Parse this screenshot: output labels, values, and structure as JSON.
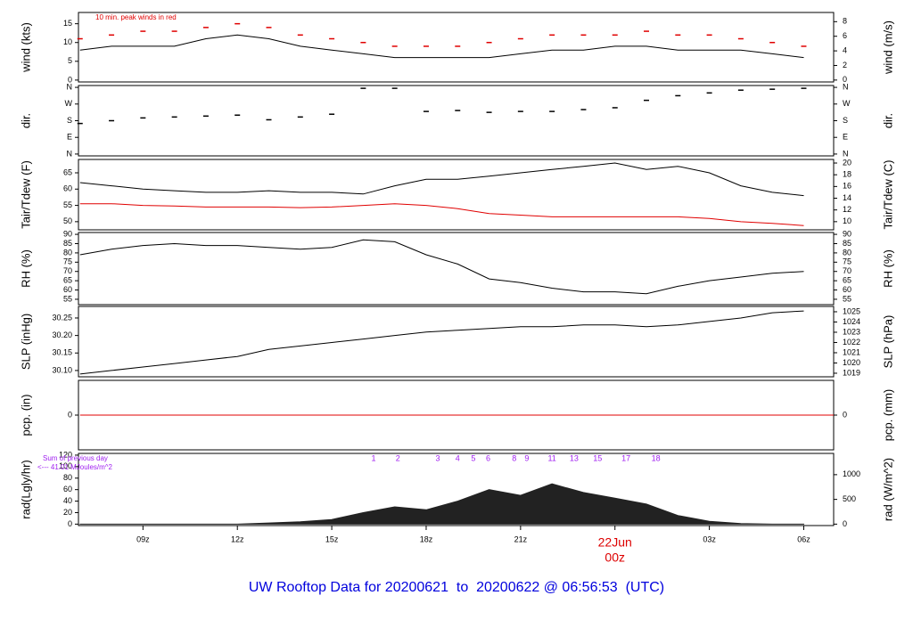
{
  "chart_data": [
    {
      "type": "line",
      "ylabel": "wind (kts)",
      "y2label": "wind (m/s)",
      "annotation": "10 min. peak winds in red",
      "annotation_color": "#e00000",
      "xlim": [
        6.95,
        30.95
      ],
      "ylim": [
        -0.5,
        18
      ],
      "yticks": [
        0,
        5,
        10,
        15
      ],
      "y2lim": [
        -0.26,
        9.26
      ],
      "y2ticks": [
        0,
        2,
        4,
        6,
        8
      ],
      "x": [
        7,
        8,
        9,
        10,
        11,
        12,
        13,
        14,
        15,
        16,
        17,
        18,
        19,
        20,
        21,
        22,
        23,
        24,
        25,
        26,
        27,
        28,
        29,
        30
      ],
      "series": [
        {
          "color": "#000000",
          "marker": "line",
          "values": [
            8,
            9,
            9,
            9,
            11,
            12,
            11,
            9,
            8,
            7,
            6,
            6,
            6,
            6,
            7,
            8,
            8,
            9,
            9,
            8,
            8,
            8,
            7,
            6
          ]
        },
        {
          "color": "#e00000",
          "marker": "dash",
          "values": [
            11,
            12,
            13,
            13,
            14,
            15,
            14,
            12,
            11,
            10,
            9,
            9,
            9,
            10,
            11,
            12,
            12,
            12,
            13,
            12,
            12,
            11,
            10,
            9
          ]
        }
      ]
    },
    {
      "type": "scatter",
      "ylabel": "dir.",
      "y2label": "dir.",
      "xlim": [
        6.95,
        30.95
      ],
      "ylim": [
        -10,
        370
      ],
      "yticks": [
        {
          "value": 0,
          "label": "N"
        },
        {
          "value": 90,
          "label": "E"
        },
        {
          "value": 180,
          "label": "S"
        },
        {
          "value": 270,
          "label": "W"
        },
        {
          "value": 360,
          "label": "N"
        }
      ],
      "x": [
        7,
        8,
        9,
        10,
        11,
        12,
        13,
        14,
        15,
        16,
        17,
        18,
        19,
        20,
        21,
        22,
        23,
        24,
        25,
        26,
        27,
        28,
        29,
        30
      ],
      "series": [
        {
          "color": "#000000",
          "marker": "dash",
          "values": [
            165,
            180,
            195,
            200,
            205,
            210,
            185,
            200,
            215,
            355,
            355,
            230,
            235,
            225,
            230,
            230,
            240,
            250,
            290,
            315,
            330,
            345,
            350,
            355
          ]
        }
      ]
    },
    {
      "type": "line",
      "ylabel": "Tair/Tdew (F)",
      "y2label": "Tair/Tdew (C)",
      "xlim": [
        6.95,
        30.95
      ],
      "ylim": [
        47.5,
        69.1
      ],
      "yticks": [
        50,
        55,
        60,
        65
      ],
      "y2lim": [
        8.61,
        20.61
      ],
      "y2ticks": [
        10,
        12,
        14,
        16,
        18,
        20
      ],
      "x": [
        7,
        8,
        9,
        10,
        11,
        12,
        13,
        14,
        15,
        16,
        17,
        18,
        19,
        20,
        21,
        22,
        23,
        24,
        25,
        26,
        27,
        28,
        29,
        30
      ],
      "series": [
        {
          "color": "#000000",
          "marker": "line",
          "values": [
            62,
            61,
            60,
            59.5,
            59,
            59,
            59.5,
            59,
            59,
            58.5,
            61,
            63,
            63,
            64,
            65,
            66,
            67,
            68,
            66,
            67,
            65,
            61,
            59,
            58
          ]
        },
        {
          "color": "#e00000",
          "marker": "line",
          "values": [
            55.5,
            55.5,
            55,
            54.8,
            54.5,
            54.5,
            54.5,
            54.3,
            54.5,
            55,
            55.5,
            55,
            54,
            52.5,
            52,
            51.5,
            51.5,
            51.5,
            51.5,
            51.5,
            51,
            50,
            49.5,
            48.8
          ]
        }
      ]
    },
    {
      "type": "line",
      "ylabel": "RH (%)",
      "y2label": "RH (%)",
      "xlim": [
        6.95,
        30.95
      ],
      "ylim": [
        52.1,
        91
      ],
      "yticks": [
        55,
        60,
        65,
        70,
        75,
        80,
        85,
        90
      ],
      "y2lim": [
        52.1,
        91
      ],
      "y2ticks": [
        55,
        60,
        65,
        70,
        75,
        80,
        85,
        90
      ],
      "x": [
        7,
        8,
        9,
        10,
        11,
        12,
        13,
        14,
        15,
        16,
        17,
        18,
        19,
        20,
        21,
        22,
        23,
        24,
        25,
        26,
        27,
        28,
        29,
        30
      ],
      "series": [
        {
          "color": "#000000",
          "marker": "line",
          "values": [
            79,
            82,
            84,
            85,
            84,
            84,
            83,
            82,
            83,
            87,
            86,
            79,
            74,
            66,
            64,
            61,
            59,
            59,
            58,
            62,
            65,
            67,
            69,
            70
          ]
        }
      ]
    },
    {
      "type": "line",
      "ylabel": "SLP (inHg)",
      "y2label": "SLP (hPa)",
      "xlim": [
        6.95,
        30.95
      ],
      "ylim": [
        30.082,
        30.283
      ],
      "yticks": [
        {
          "value": 30.1,
          "label": "30.10"
        },
        30.15,
        {
          "value": 30.2,
          "label": "30.20"
        },
        30.25
      ],
      "y2lim": [
        1018.65,
        1025.52
      ],
      "y2ticks": [
        1019,
        1020,
        1021,
        1022,
        1023,
        1024,
        1025
      ],
      "x": [
        7,
        8,
        9,
        10,
        11,
        12,
        13,
        14,
        15,
        16,
        17,
        18,
        19,
        20,
        21,
        22,
        23,
        24,
        25,
        26,
        27,
        28,
        29,
        30
      ],
      "series": [
        {
          "color": "#000000",
          "marker": "line",
          "values": [
            30.09,
            30.1,
            30.11,
            30.12,
            30.13,
            30.14,
            30.16,
            30.17,
            30.18,
            30.19,
            30.2,
            30.21,
            30.215,
            30.22,
            30.225,
            30.225,
            30.23,
            30.23,
            30.225,
            30.23,
            30.24,
            30.25,
            30.265,
            30.27
          ]
        }
      ]
    },
    {
      "type": "line",
      "ylabel": "pcp. (in)",
      "y2label": "pcp. (mm)",
      "xlim": [
        6.95,
        30.95
      ],
      "ylim": [
        -1,
        1
      ],
      "yticks": [
        0
      ],
      "y2lim": [
        -1,
        1
      ],
      "y2ticks": [
        0
      ],
      "x": [
        7,
        30.95
      ],
      "series": [
        {
          "color": "#e00000",
          "marker": "line",
          "values": [
            0,
            0
          ]
        }
      ]
    },
    {
      "type": "area",
      "ylabel": "rad(Lgly/hr)",
      "y2label": "rad (W/m^2)",
      "annotation": "Sum of previous day",
      "annotation2": "<--- 41.01 MJoules/m^2",
      "annotation_color": "#a020f0",
      "xlim": [
        6.95,
        30.95
      ],
      "ylim": [
        -2.5,
        123
      ],
      "yticks": [
        0,
        20,
        40,
        60,
        80,
        100,
        120
      ],
      "y2lim": [
        -29,
        1430
      ],
      "y2ticks": [
        0,
        500,
        1000
      ],
      "marker_numbers": [
        1,
        2,
        3,
        4,
        5,
        6,
        8,
        9,
        11,
        13,
        15,
        17,
        18
      ],
      "marker_x": [
        16.33,
        17.1,
        18.37,
        19.0,
        19.5,
        19.97,
        20.8,
        21.2,
        22.0,
        22.7,
        23.45,
        24.35,
        25.3
      ],
      "xticks": [
        {
          "value": 9,
          "label": "09z"
        },
        {
          "value": 12,
          "label": "12z"
        },
        {
          "value": 15,
          "label": "15z"
        },
        {
          "value": 18,
          "label": "18z"
        },
        {
          "value": 21,
          "label": "21z"
        },
        {
          "value": 24,
          "label": "00z"
        },
        {
          "value": 27,
          "label": "03z"
        },
        {
          "value": 30,
          "label": "06z"
        }
      ],
      "date_label": {
        "value": 24,
        "label": "22Jun",
        "color": "#dd0000"
      },
      "x": [
        7,
        8,
        9,
        10,
        11,
        12,
        13,
        14,
        15,
        16,
        17,
        18,
        19,
        20,
        21,
        22,
        23,
        24,
        25,
        26,
        27,
        28,
        29,
        30
      ],
      "series": [
        {
          "color": "#222222",
          "marker": "area",
          "values": [
            0,
            0,
            0,
            0,
            0,
            0,
            2,
            4,
            8,
            20,
            30,
            25,
            40,
            60,
            50,
            70,
            55,
            45,
            35,
            15,
            5,
            1,
            0,
            0
          ]
        }
      ]
    }
  ],
  "footer": {
    "title": "UW Rooftop Data for 20200621  to  20200622 @ 06:56:53  (UTC)"
  }
}
